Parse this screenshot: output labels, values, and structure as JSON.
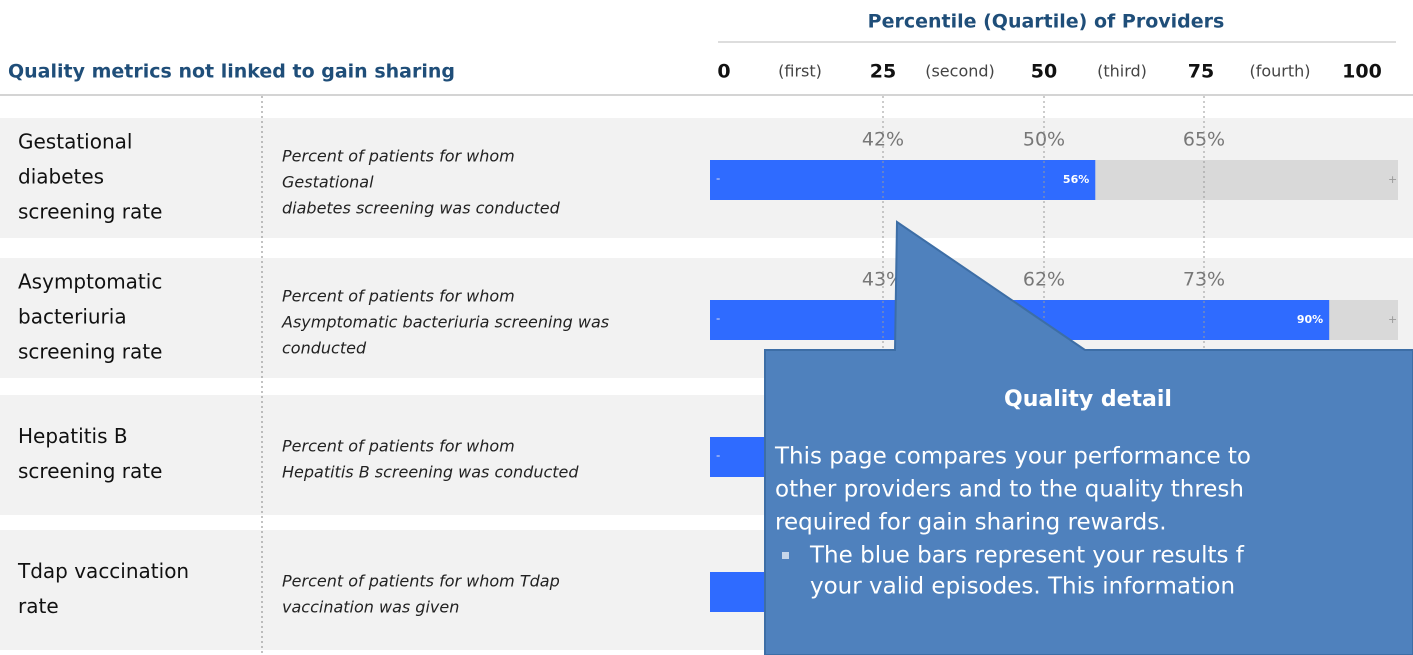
{
  "header": {
    "percentile_title": "Percentile (Quartile) of Providers",
    "section_title": "Quality metrics not linked to gain sharing",
    "axis": [
      "0",
      "(first)",
      "25",
      "(second)",
      "50",
      "(third)",
      "75",
      "(fourth)",
      "100"
    ]
  },
  "rows": [
    {
      "name_lines": [
        "Gestational",
        "diabetes",
        "screening rate"
      ],
      "description_lines": [
        "Percent of patients for whom",
        "Gestational",
        "diabetes screening was conducted"
      ],
      "percentiles": [
        "42%",
        "50%",
        "65%"
      ],
      "bar_value": 56,
      "bar_label": "56%",
      "minus": "-",
      "plus": "+"
    },
    {
      "name_lines": [
        "Asymptomatic",
        "bacteriuria",
        "screening rate"
      ],
      "description_lines": [
        "Percent of patients for whom",
        "Asymptomatic bacteriuria screening was",
        "conducted"
      ],
      "percentiles": [
        "43%",
        "62%",
        "73%"
      ],
      "bar_value": 90,
      "bar_label": "90%",
      "minus": "-",
      "plus": "+"
    },
    {
      "name_lines": [
        "Hepatitis B",
        "screening rate"
      ],
      "description_lines": [
        "Percent of patients for whom",
        "Hepatitis B screening was conducted"
      ],
      "minus": "-"
    },
    {
      "name_lines": [
        "Tdap vaccination",
        "rate"
      ],
      "description_lines": [
        "Percent of patients for whom Tdap",
        "vaccination was given"
      ]
    }
  ],
  "callout": {
    "title": "Quality detail",
    "lines": [
      "This page compares your performance to",
      "other providers and to the quality thresh",
      "required for gain sharing rewards."
    ],
    "bullet_lines": [
      "The blue bars represent your results f",
      "your valid episodes. This information"
    ]
  }
}
